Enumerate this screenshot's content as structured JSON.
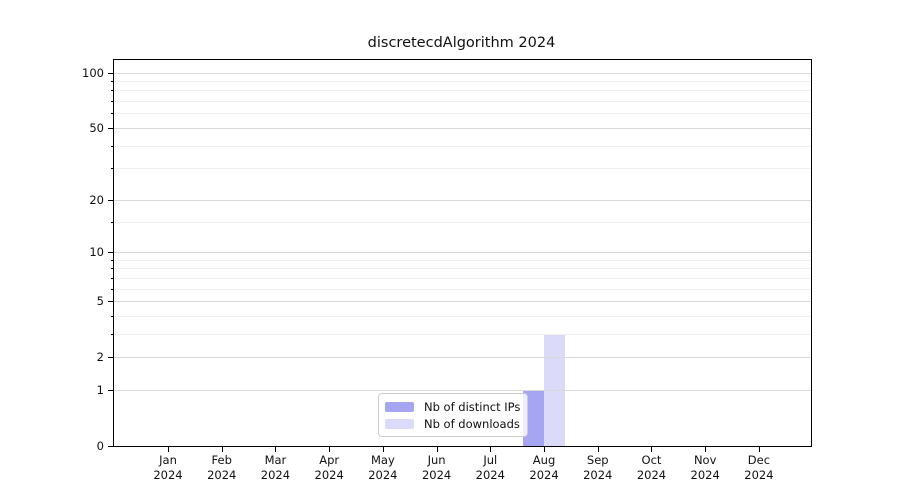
{
  "title": "discretecdAlgorithm 2024",
  "chart_data": {
    "type": "bar",
    "title": "discretecdAlgorithm 2024",
    "scale": "log1p",
    "categories": [
      "Jan",
      "Feb",
      "Mar",
      "Apr",
      "May",
      "Jun",
      "Jul",
      "Aug",
      "Sep",
      "Oct",
      "Nov",
      "Dec"
    ],
    "x_tick_year": "2024",
    "series": [
      {
        "name": "Nb of distinct IPs",
        "color": "#a5a5f1",
        "values": [
          0,
          0,
          0,
          0,
          0,
          0,
          0,
          1,
          0,
          0,
          0,
          0
        ]
      },
      {
        "name": "Nb of downloads",
        "color": "#dbdbf9",
        "values": [
          0,
          0,
          0,
          0,
          0,
          0,
          0,
          3,
          0,
          0,
          0,
          0
        ]
      }
    ],
    "y_major_ticks": [
      0,
      1,
      2,
      5,
      10,
      20,
      50,
      100
    ],
    "y_minor_ticks": [
      3,
      4,
      6,
      7,
      8,
      9,
      15,
      30,
      40,
      60,
      70,
      80,
      90
    ],
    "ylim": [
      0,
      117
    ],
    "grid": "horizontal",
    "legend_position": "lower center",
    "colors": {
      "major_grid": "#d9d9d9",
      "minor_grid": "#efefef",
      "spine": "#000000",
      "legend_border": "#cccccc"
    }
  }
}
